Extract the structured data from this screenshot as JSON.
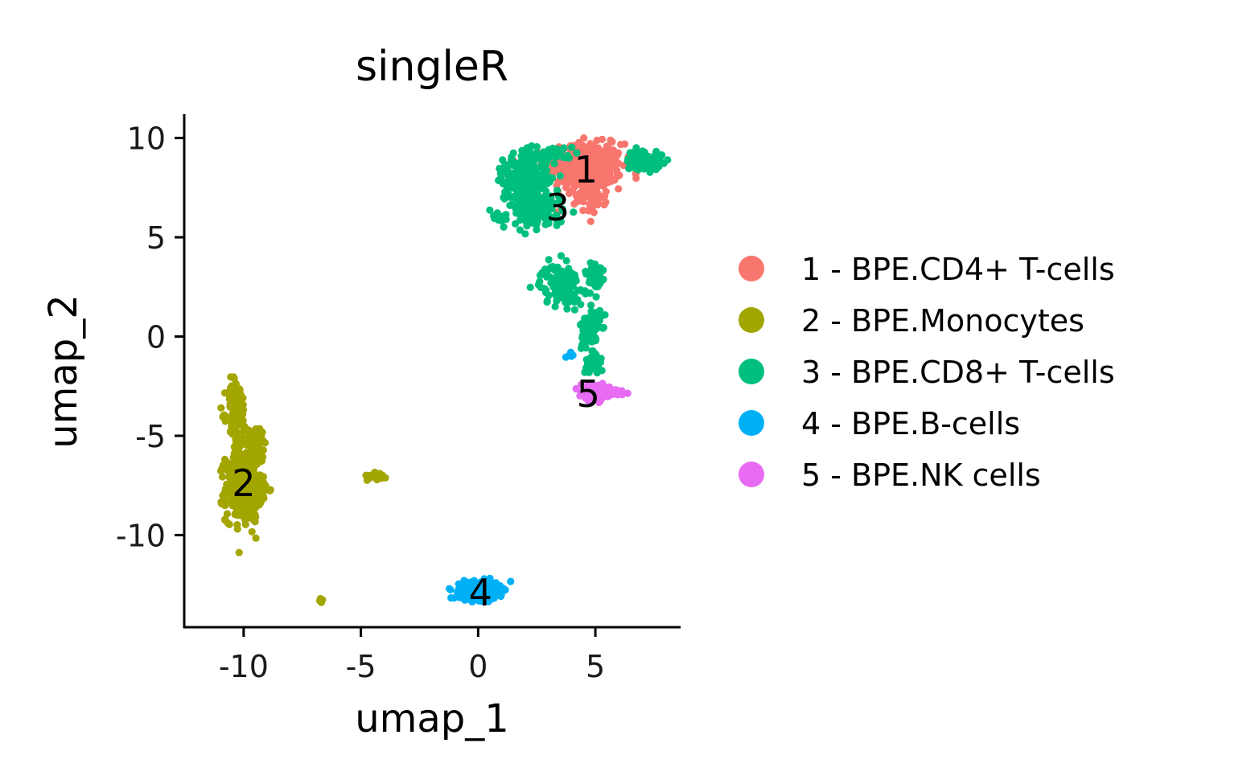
{
  "chart_data": {
    "type": "scatter",
    "title": "singleR",
    "xlabel": "umap_1",
    "ylabel": "umap_2",
    "xlim": [
      -12.5,
      8.6
    ],
    "ylim": [
      -14.6,
      11.2
    ],
    "x_ticks": [
      -10,
      -5,
      0,
      5
    ],
    "x_tick_labels": [
      "-10",
      "-5",
      "0",
      "5"
    ],
    "y_ticks": [
      10,
      5,
      0,
      -5,
      -10
    ],
    "y_tick_labels": [
      "10",
      "5",
      "0",
      "-5",
      "-10"
    ],
    "grid": false,
    "legend_position": "right",
    "series": [
      {
        "name": "1 - BPE.CD4+ T-cells",
        "color": "#F8766D",
        "label": "1",
        "label_pos": [
          4.6,
          8.4
        ],
        "clusters": [
          {
            "cx": 4.6,
            "cy": 8.6,
            "sx": 0.9,
            "sy": 0.65,
            "n": 480
          },
          {
            "cx": 4.8,
            "cy": 7.2,
            "sx": 0.4,
            "sy": 0.6,
            "n": 70
          }
        ]
      },
      {
        "name": "2 - BPE.Monocytes",
        "color": "#A3A500",
        "label": "2",
        "label_pos": [
          -10.0,
          -7.4
        ],
        "clusters": [
          {
            "cx": -10.0,
            "cy": -7.6,
            "sx": 0.45,
            "sy": 1.0,
            "n": 420
          },
          {
            "cx": -10.3,
            "cy": -3.8,
            "sx": 0.25,
            "sy": 1.0,
            "n": 120
          },
          {
            "cx": -9.5,
            "cy": -5.5,
            "sx": 0.3,
            "sy": 0.6,
            "n": 60
          },
          {
            "cx": -4.3,
            "cy": -7.0,
            "sx": 0.25,
            "sy": 0.12,
            "n": 25
          },
          {
            "cx": -6.7,
            "cy": -13.3,
            "sx": 0.05,
            "sy": 0.05,
            "n": 6
          }
        ]
      },
      {
        "name": "3 - BPE.CD8+ T-cells",
        "color": "#00BF7D",
        "label": "3",
        "label_pos": [
          3.4,
          6.5
        ],
        "clusters": [
          {
            "cx": 2.0,
            "cy": 7.8,
            "sx": 0.55,
            "sy": 0.8,
            "n": 320
          },
          {
            "cx": 2.6,
            "cy": 6.3,
            "sx": 0.6,
            "sy": 0.5,
            "n": 120
          },
          {
            "cx": 7.1,
            "cy": 8.9,
            "sx": 0.45,
            "sy": 0.3,
            "n": 80
          },
          {
            "cx": 3.5,
            "cy": 2.6,
            "sx": 0.5,
            "sy": 0.6,
            "n": 110
          },
          {
            "cx": 5.0,
            "cy": 3.0,
            "sx": 0.25,
            "sy": 0.5,
            "n": 50
          },
          {
            "cx": 4.8,
            "cy": 0.2,
            "sx": 0.25,
            "sy": 0.9,
            "n": 80
          },
          {
            "cx": 5.0,
            "cy": -1.3,
            "sx": 0.2,
            "sy": 0.4,
            "n": 30
          },
          {
            "cx": 0.9,
            "cy": 6.0,
            "sx": 0.15,
            "sy": 0.15,
            "n": 15
          },
          {
            "cx": 3.2,
            "cy": 9.2,
            "sx": 0.6,
            "sy": 0.2,
            "n": 40
          }
        ]
      },
      {
        "name": "4 - BPE.B-cells",
        "color": "#00B0F6",
        "label": "4",
        "label_pos": [
          0.1,
          -12.9
        ],
        "clusters": [
          {
            "cx": 0.0,
            "cy": -12.8,
            "sx": 0.45,
            "sy": 0.25,
            "n": 520
          },
          {
            "cx": 4.0,
            "cy": -1.0,
            "sx": 0.12,
            "sy": 0.12,
            "n": 6
          }
        ]
      },
      {
        "name": "5 - BPE.NK cells",
        "color": "#E76BF3",
        "label": "5",
        "label_pos": [
          4.7,
          -2.9
        ],
        "clusters": [
          {
            "cx": 5.0,
            "cy": -2.8,
            "sx": 0.35,
            "sy": 0.25,
            "n": 90
          },
          {
            "cx": 5.9,
            "cy": -2.8,
            "sx": 0.25,
            "sy": 0.12,
            "n": 25
          }
        ]
      }
    ]
  }
}
